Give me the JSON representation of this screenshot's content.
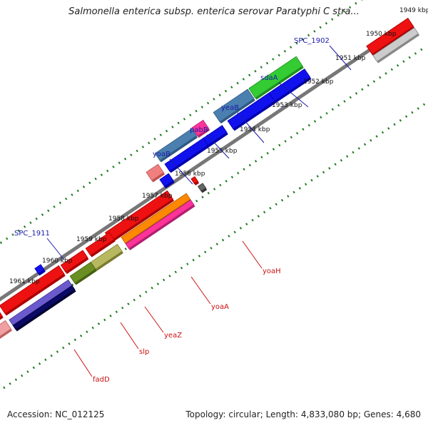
{
  "title": "Salmonella enterica subsp. enterica serovar Paratyphi C stra...",
  "footer": {
    "accession": "Accession: NC_012125",
    "summary": "Topology: circular; Length: 4,833,080 bp; Genes: 4,680"
  },
  "ticks": [
    "1949 kbp",
    "1950 kbp",
    "1951 kbp",
    "1952 kbp",
    "1953 kbp",
    "1954 kbp",
    "1955 kbp",
    "1956 kbp",
    "1957 kbp",
    "1958 kbp",
    "1959 kbp",
    "1960 kbp",
    "1961 kbp"
  ],
  "gene_labels_top": [
    "SPC_1902",
    "sdaA",
    "yeaB",
    "pabB",
    "yoaB",
    "SPC_1911"
  ],
  "gene_labels_bottom": [
    "yoaH",
    "yoaA",
    "yeaZ",
    "slp",
    "fadD"
  ],
  "colors": {
    "label_top": "#1a1aa8",
    "label_bottom": "#cc1111",
    "tick": "#1f7a1f",
    "backbone": "#777777"
  }
}
